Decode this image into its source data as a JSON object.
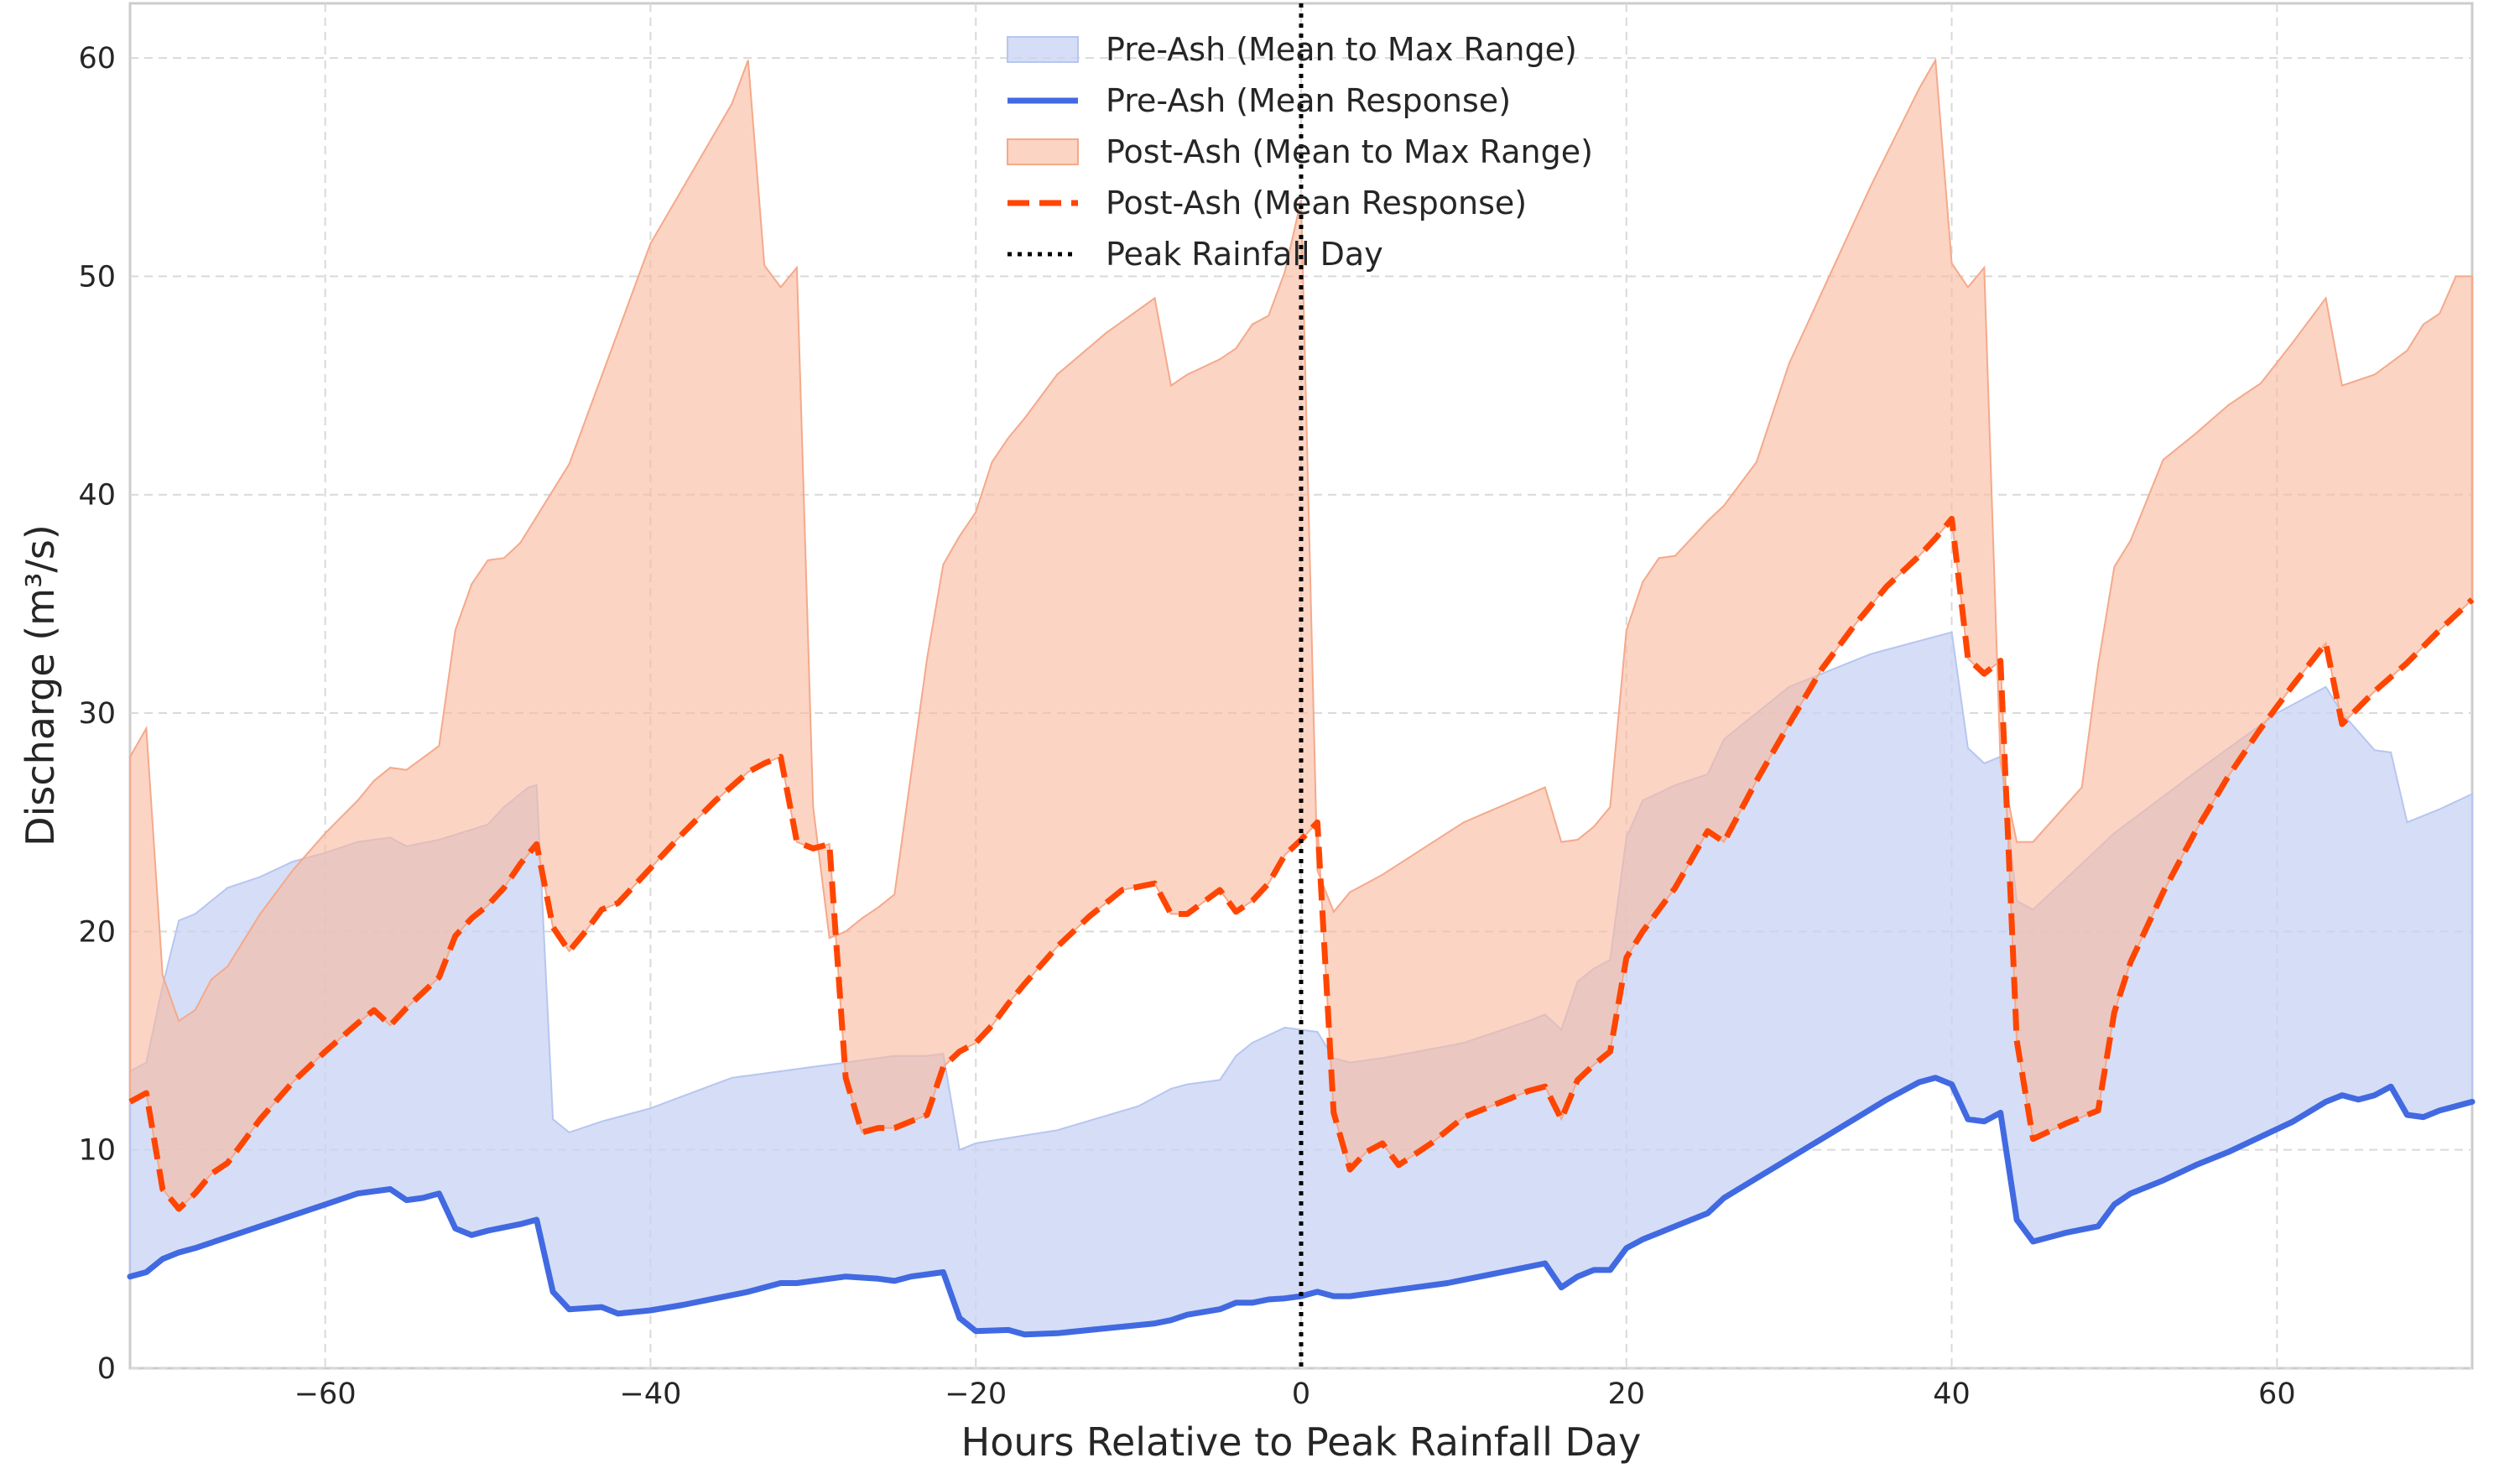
{
  "chart_data": {
    "type": "area",
    "title": "",
    "xlabel": "Hours Relative to Peak Rainfall Day",
    "ylabel": "Discharge (m³/s)",
    "xlim": [
      -72,
      72
    ],
    "ylim": [
      0,
      62.5
    ],
    "x_ticks": [
      -60,
      -40,
      -20,
      0,
      20,
      40,
      60
    ],
    "x_tick_labels": [
      "−60",
      "−40",
      "−20",
      "0",
      "20",
      "40",
      "60"
    ],
    "y_ticks": [
      0,
      10,
      20,
      30,
      40,
      50,
      60
    ],
    "y_tick_labels": [
      "0",
      "10",
      "20",
      "30",
      "40",
      "50",
      "60"
    ],
    "grid": true,
    "legend_position": "top-center",
    "peak_rainfall_x": 0,
    "colors": {
      "pre_fill": "#c7d3f3",
      "pre_line": "#4169e1",
      "post_fill": "#f8b9a0",
      "post_line": "#ff4500",
      "peak": "#000000"
    },
    "series": [
      {
        "name": "Pre-Ash (Mean to Max Range)",
        "kind": "band",
        "lower_series": "Pre-Ash (Mean Response)",
        "x": [
          -72,
          -71,
          -70,
          -69,
          -68,
          -66,
          -64,
          -62,
          -60,
          -58,
          -56,
          -55,
          -53,
          -50,
          -49,
          -47.5,
          -47,
          -46,
          -45,
          -43,
          -40,
          -35,
          -32,
          -30,
          -25,
          -23,
          -22,
          -21,
          -20,
          -15,
          -10,
          -8,
          -7,
          -5,
          -4,
          -3,
          -1,
          1,
          2,
          3,
          5,
          10,
          14,
          15,
          16,
          17,
          18,
          19,
          20,
          21,
          23,
          25,
          26,
          28,
          30,
          35,
          40,
          41,
          42,
          43,
          44,
          45,
          50,
          55,
          60,
          63,
          64,
          66,
          67,
          68,
          70,
          72
        ],
        "values": [
          13.6,
          14,
          17.5,
          20.5,
          20.8,
          22,
          22.5,
          23.2,
          23.6,
          24.1,
          24.3,
          23.9,
          24.2,
          24.9,
          25.7,
          26.6,
          26.7,
          11.4,
          10.8,
          11.3,
          11.9,
          13.3,
          13.6,
          13.8,
          14.3,
          14.3,
          14.4,
          10,
          10.3,
          10.9,
          12.0,
          12.8,
          13.0,
          13.2,
          14.3,
          14.9,
          15.6,
          15.4,
          14.2,
          14.0,
          14.2,
          14.9,
          15.9,
          16.2,
          15.5,
          17.7,
          18.3,
          18.7,
          24.3,
          26,
          26.7,
          27.2,
          28.8,
          30,
          31.2,
          32.7,
          33.7,
          28.4,
          27.7,
          28,
          21.4,
          21,
          24.5,
          27.3,
          30,
          31.2,
          30,
          28.3,
          28.2,
          25,
          25.6,
          26.3
        ]
      },
      {
        "name": "Pre-Ash (Mean Response)",
        "kind": "line",
        "x": [
          -72,
          -71,
          -70,
          -69,
          -68,
          -66,
          -64,
          -62,
          -60,
          -58,
          -56,
          -55,
          -54,
          -53,
          -52,
          -51,
          -50,
          -48,
          -47,
          -46,
          -45,
          -43,
          -42,
          -40,
          -38,
          -36,
          -34,
          -32,
          -31,
          -30,
          -28,
          -26,
          -25,
          -24,
          -22,
          -21,
          -20,
          -18,
          -17,
          -15,
          -13,
          -11,
          -9,
          -8,
          -7,
          -5,
          -4,
          -3,
          -2,
          -1,
          0,
          1,
          2,
          3,
          5,
          7,
          9,
          11,
          13,
          15,
          16,
          17,
          18,
          19,
          20,
          21,
          22,
          23,
          25,
          26,
          28,
          30,
          32,
          34,
          36,
          38,
          39,
          40,
          41,
          42,
          43,
          44,
          45,
          47,
          49,
          50,
          51,
          53,
          55,
          57,
          59,
          61,
          63,
          64,
          65,
          66,
          67,
          68,
          69,
          70,
          72
        ],
        "values": [
          4.2,
          4.4,
          5.0,
          5.3,
          5.5,
          6.0,
          6.5,
          7.0,
          7.5,
          8.0,
          8.2,
          7.7,
          7.8,
          8.0,
          6.4,
          6.1,
          6.3,
          6.6,
          6.8,
          3.5,
          2.7,
          2.8,
          2.5,
          2.65,
          2.9,
          3.2,
          3.5,
          3.9,
          3.9,
          4.0,
          4.2,
          4.1,
          4.0,
          4.2,
          4.4,
          2.3,
          1.7,
          1.75,
          1.55,
          1.6,
          1.75,
          1.9,
          2.05,
          2.2,
          2.45,
          2.7,
          3.0,
          3.0,
          3.15,
          3.2,
          3.3,
          3.5,
          3.3,
          3.3,
          3.5,
          3.7,
          3.9,
          4.2,
          4.5,
          4.8,
          3.7,
          4.2,
          4.5,
          4.5,
          5.5,
          5.9,
          6.2,
          6.5,
          7.1,
          7.8,
          8.7,
          9.6,
          10.5,
          11.4,
          12.3,
          13.1,
          13.3,
          13.0,
          11.4,
          11.3,
          11.7,
          6.8,
          5.8,
          6.2,
          6.5,
          7.5,
          8.0,
          8.6,
          9.3,
          9.9,
          10.6,
          11.3,
          12.2,
          12.5,
          12.3,
          12.5,
          12.9,
          11.6,
          11.5,
          11.8,
          12.2
        ]
      },
      {
        "name": "Post-Ash (Mean to Max Range)",
        "kind": "band",
        "lower_series": "Post-Ash (Mean Response)",
        "x": [
          -72,
          -71,
          -70,
          -69,
          -68,
          -67,
          -66,
          -65,
          -64,
          -62,
          -60,
          -58,
          -57,
          -56,
          -55,
          -53,
          -52,
          -51,
          -50,
          -49,
          -48,
          -45,
          -40,
          -35,
          -34,
          -33,
          -32,
          -31,
          -30,
          -29,
          -28,
          -27,
          -26,
          -25,
          -23,
          -22,
          -21,
          -20,
          -19,
          -18,
          -17,
          -15,
          -12,
          -9,
          -8,
          -7,
          -5,
          -4,
          -3,
          -2,
          -1,
          0,
          1,
          2,
          3,
          5,
          10,
          15,
          16,
          17,
          18,
          19,
          20,
          21,
          22,
          23,
          25,
          26,
          28,
          30,
          35,
          38,
          39,
          40,
          41,
          42,
          43,
          44,
          45,
          48,
          49,
          50,
          51,
          53,
          55,
          57,
          59,
          61,
          63,
          64,
          66,
          68,
          69,
          70,
          71,
          72
        ],
        "values": [
          28,
          29.3,
          18,
          15.9,
          16.4,
          17.8,
          18.4,
          19.6,
          20.8,
          22.8,
          24.5,
          26,
          26.9,
          27.5,
          27.4,
          28.5,
          33.8,
          35.9,
          37.0,
          37.1,
          37.8,
          41.4,
          51.5,
          57.9,
          59.9,
          50.5,
          49.5,
          50.4,
          25.7,
          19.7,
          20.0,
          20.6,
          21.1,
          21.7,
          32.5,
          36.8,
          38.1,
          39.2,
          41.5,
          42.6,
          43.5,
          45.5,
          47.4,
          49.0,
          45.0,
          45.5,
          46.2,
          46.7,
          47.8,
          48.2,
          50.2,
          53.5,
          22.8,
          20.9,
          21.8,
          22.6,
          25.0,
          26.6,
          24.1,
          24.2,
          24.8,
          25.7,
          33.8,
          36.0,
          37.1,
          37.2,
          38.8,
          39.5,
          41.5,
          46.0,
          54.1,
          58.6,
          59.9,
          50.6,
          49.5,
          50.4,
          27.7,
          24.1,
          24.1,
          26.6,
          32.2,
          36.7,
          37.9,
          41.6,
          42.8,
          44.1,
          45.1,
          47.0,
          49.0,
          45.0,
          45.5,
          46.6,
          47.8,
          48.3,
          50.0,
          50.0
        ]
      },
      {
        "name": "Post-Ash (Mean Response)",
        "kind": "line",
        "style": "dashed",
        "x": [
          -72,
          -71,
          -70,
          -69,
          -68,
          -67,
          -66,
          -65,
          -64,
          -62,
          -60,
          -58,
          -57,
          -56,
          -55,
          -53,
          -52,
          -51,
          -50,
          -49,
          -48,
          -47,
          -46,
          -45,
          -44,
          -43,
          -42,
          -40,
          -38,
          -36,
          -34,
          -33,
          -32,
          -31,
          -30,
          -29,
          -28,
          -27,
          -26,
          -25,
          -23,
          -22,
          -21,
          -20,
          -19,
          -18,
          -17,
          -15,
          -13,
          -11,
          -9,
          -8,
          -7,
          -5,
          -4,
          -3,
          -2,
          -1,
          0,
          1,
          2,
          3,
          4,
          5,
          6,
          8,
          10,
          12,
          14,
          15,
          16,
          17,
          18,
          19,
          20,
          21,
          22,
          23,
          25,
          26,
          28,
          30,
          32,
          34,
          36,
          38,
          39,
          40,
          41,
          42,
          43,
          44,
          45,
          47,
          49,
          50,
          51,
          53,
          55,
          57,
          59,
          61,
          63,
          64,
          66,
          68,
          70,
          72
        ],
        "values": [
          12.2,
          12.6,
          8.2,
          7.3,
          8.0,
          8.9,
          9.4,
          10.4,
          11.4,
          13.1,
          14.5,
          15.8,
          16.4,
          15.7,
          16.5,
          17.9,
          19.8,
          20.6,
          21.2,
          22.0,
          23.1,
          24.0,
          20.2,
          19.1,
          20.0,
          21.0,
          21.3,
          22.9,
          24.5,
          26.0,
          27.3,
          27.7,
          28.0,
          24.1,
          23.8,
          24.0,
          13.3,
          10.8,
          11.0,
          11.0,
          11.6,
          13.8,
          14.5,
          14.9,
          15.7,
          16.7,
          17.6,
          19.3,
          20.7,
          21.9,
          22.2,
          20.8,
          20.8,
          21.9,
          20.9,
          21.4,
          22.2,
          23.5,
          24.2,
          25.0,
          11.7,
          9.1,
          9.9,
          10.3,
          9.3,
          10.3,
          11.5,
          12.1,
          12.7,
          12.9,
          11.4,
          13.2,
          13.9,
          14.5,
          18.8,
          20.0,
          21.0,
          22.0,
          24.6,
          24.1,
          26.9,
          29.5,
          32.0,
          34.0,
          35.8,
          37.2,
          38.0,
          38.9,
          32.5,
          31.8,
          32.4,
          15.0,
          10.5,
          11.2,
          11.8,
          16.3,
          18.6,
          21.8,
          24.6,
          27.1,
          29.3,
          31.3,
          33.2,
          29.5,
          31.0,
          32.3,
          33.8,
          35.2
        ]
      },
      {
        "name": "Peak Rainfall Day",
        "kind": "vline",
        "style": "dotted",
        "x": 0
      }
    ]
  }
}
